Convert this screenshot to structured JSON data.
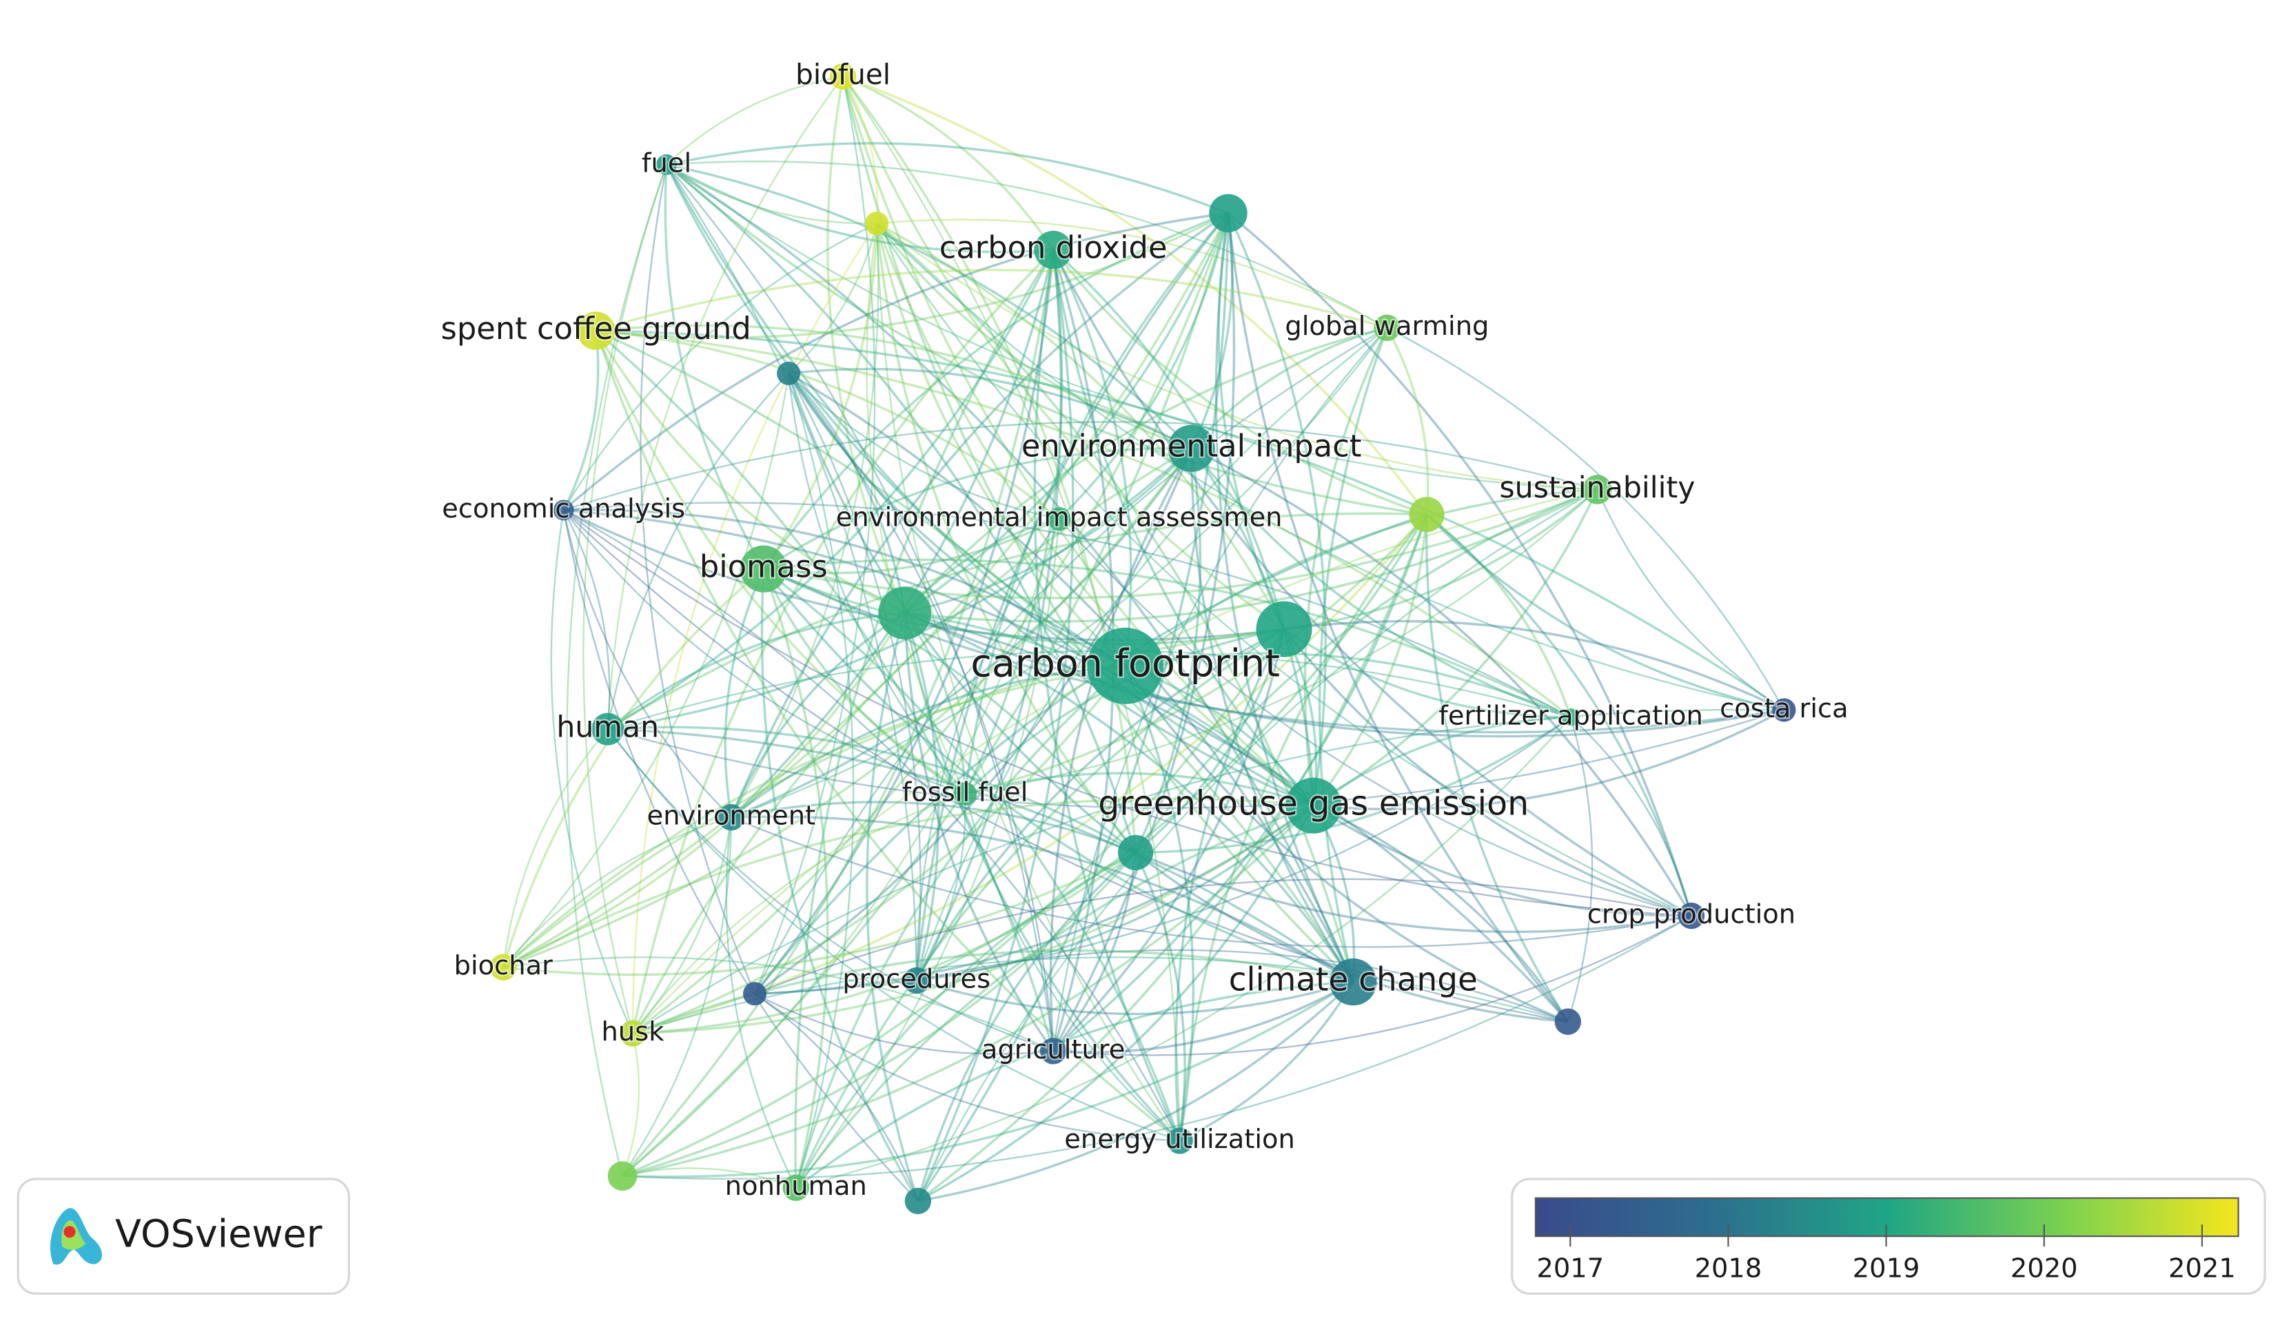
{
  "nodes": [
    {
      "label": "biofuel",
      "year": 2021.0
    },
    {
      "label": "fuel",
      "year": 2018.8
    },
    {
      "label": null,
      "year": 2020.9
    },
    {
      "label": null,
      "year": 2018.9
    },
    {
      "label": "carbon dioxide",
      "year": 2019.1
    },
    {
      "label": "spent coffee ground",
      "year": 2020.9
    },
    {
      "label": null,
      "year": 2018.3
    },
    {
      "label": "global warming",
      "year": 2019.9
    },
    {
      "label": "environmental impact",
      "year": 2018.8
    },
    {
      "label": "economic analysis",
      "year": 2017.4
    },
    {
      "label": "environmental impact assessmen",
      "year": 2019.3
    },
    {
      "label": null,
      "year": 2020.4
    },
    {
      "label": "sustainability",
      "year": 2019.8
    },
    {
      "label": "biomass",
      "year": 2019.6
    },
    {
      "label": null,
      "year": 2019.2
    },
    {
      "label": null,
      "year": 2019.0
    },
    {
      "label": "carbon footprint",
      "year": 2019.0
    },
    {
      "label": "human",
      "year": 2018.9
    },
    {
      "label": "fertilizer application",
      "year": 2019.2
    },
    {
      "label": "costa rica",
      "year": 2017.1
    },
    {
      "label": "fossil fuel",
      "year": 2019.3
    },
    {
      "label": "greenhouse gas emission",
      "year": 2019.0
    },
    {
      "label": "environment",
      "year": 2018.4
    },
    {
      "label": null,
      "year": 2018.9
    },
    {
      "label": "crop production",
      "year": 2017.2
    },
    {
      "label": "biochar",
      "year": 2020.9
    },
    {
      "label": null,
      "year": 2017.3
    },
    {
      "label": "procedures",
      "year": 2018.3
    },
    {
      "label": "climate change",
      "year": 2018.2
    },
    {
      "label": null,
      "year": 2017.3
    },
    {
      "label": "husk",
      "year": 2020.7
    },
    {
      "label": "agriculture",
      "year": 2017.6
    },
    {
      "label": "energy utilization",
      "year": 2018.6
    },
    {
      "label": null,
      "year": 2020.1
    },
    {
      "label": "nonhuman",
      "year": 2019.7
    },
    {
      "label": null,
      "year": 2018.5
    }
  ],
  "colorbar": {
    "range": [
      2016.78,
      2021.23
    ],
    "ticks": [
      2017,
      2018,
      2019,
      2020,
      2021
    ]
  },
  "logo": "VOSviewer"
}
